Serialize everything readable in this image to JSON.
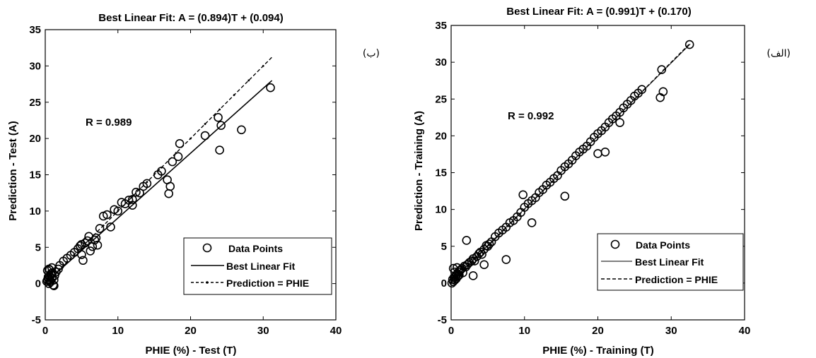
{
  "chart_data": [
    {
      "type": "scatter",
      "title": "Best Linear Fit: A = (0.894)T + (0.094)",
      "xlabel": "PHIE (%) - Test (T)",
      "ylabel": "Prediction - Test (A)",
      "xlim": [
        0,
        40
      ],
      "ylim": [
        -5,
        35
      ],
      "xticks": [
        0,
        10,
        20,
        30,
        40
      ],
      "yticks": [
        -5,
        0,
        5,
        10,
        15,
        20,
        25,
        30,
        35
      ],
      "annotation": "R = 0.989",
      "panel_tag": "(ب)",
      "legend_position": "bottom-right",
      "grid": false,
      "series": [
        {
          "name": "Data Points",
          "kind": "markers",
          "x": [
            0.2,
            0.3,
            0.4,
            0.5,
            0.6,
            0.7,
            0.8,
            0.9,
            1.0,
            0.3,
            0.5,
            0.7,
            1.2,
            0.6,
            0.9,
            0.4,
            0.8,
            1.1,
            1.3,
            0.5,
            1.5,
            1.8,
            2.0,
            2.5,
            3.0,
            3.5,
            4.0,
            4.5,
            4.8,
            5.0,
            5.2,
            5.5,
            5.8,
            6.0,
            6.2,
            6.5,
            6.8,
            7.0,
            7.2,
            7.5,
            8.0,
            8.5,
            9.0,
            9.5,
            10.0,
            10.5,
            11.0,
            11.5,
            12.0,
            12.0,
            12.5,
            13.0,
            13.5,
            14.0,
            15.5,
            16.0,
            16.8,
            17.0,
            17.2,
            17.5,
            18.3,
            18.5,
            22.0,
            23.8,
            24.0,
            24.2,
            27.0,
            31.0,
            1.2,
            5.0
          ],
          "y": [
            0.3,
            0.5,
            0.8,
            0.6,
            1.0,
            0.4,
            1.2,
            0.7,
            1.5,
            1.8,
            2.0,
            0.2,
            0.5,
            1.9,
            2.2,
            0.9,
            1.4,
            -0.2,
            1.1,
            0.0,
            1.6,
            2.0,
            2.5,
            3.1,
            3.5,
            3.9,
            4.3,
            4.8,
            5.2,
            5.4,
            3.2,
            5.6,
            5.9,
            6.5,
            4.5,
            5.1,
            6.0,
            6.3,
            5.3,
            7.6,
            9.3,
            9.5,
            7.8,
            10.2,
            10.0,
            11.2,
            11.0,
            11.5,
            10.8,
            11.6,
            12.6,
            12.5,
            13.4,
            13.8,
            15.0,
            15.5,
            14.3,
            12.4,
            13.4,
            16.8,
            17.5,
            19.3,
            20.4,
            22.9,
            18.4,
            21.8,
            21.2,
            27.0,
            -0.3,
            4.0
          ]
        },
        {
          "name": "Best Linear Fit",
          "kind": "line",
          "slope": 0.894,
          "intercept": 0.094,
          "x": [
            0,
            31.2
          ]
        },
        {
          "name": "Prediction = PHIE",
          "kind": "line",
          "slope": 1.0,
          "intercept": 0.0,
          "x": [
            0,
            31.2
          ]
        }
      ]
    },
    {
      "type": "scatter",
      "title": "Best Linear Fit: A = (0.991)T + (0.170)",
      "xlabel": "PHIE (%) - Training (T)",
      "ylabel": "Prediction - Training (A)",
      "xlim": [
        0,
        40
      ],
      "ylim": [
        -5,
        35
      ],
      "xticks": [
        0,
        10,
        20,
        30,
        40
      ],
      "yticks": [
        -5,
        0,
        5,
        10,
        15,
        20,
        25,
        30,
        35
      ],
      "annotation": "R = 0.992",
      "panel_tag": "(الف)",
      "legend_position": "bottom-right",
      "grid": false,
      "series": [
        {
          "name": "Data Points",
          "kind": "markers",
          "x": [
            0.1,
            0.2,
            0.3,
            0.4,
            0.5,
            0.6,
            0.7,
            0.8,
            0.9,
            1.0,
            1.1,
            1.2,
            0.3,
            0.5,
            0.8,
            1.0,
            1.3,
            1.5,
            1.6,
            1.8,
            2.0,
            2.2,
            2.5,
            2.8,
            3.0,
            3.2,
            3.5,
            3.8,
            4.0,
            4.2,
            4.5,
            4.8,
            5.0,
            5.2,
            5.5,
            6.0,
            6.5,
            7.0,
            7.5,
            8.0,
            8.5,
            9.0,
            9.5,
            10.0,
            10.5,
            11.0,
            11.5,
            12.0,
            12.5,
            13.0,
            13.5,
            14.0,
            14.5,
            15.0,
            15.5,
            16.0,
            16.5,
            17.0,
            17.5,
            18.0,
            18.5,
            19.0,
            19.5,
            20.0,
            20.5,
            21.0,
            21.5,
            22.0,
            22.5,
            23.0,
            23.5,
            24.0,
            24.5,
            25.0,
            25.5,
            26.0,
            28.7,
            28.9,
            32.5,
            2.1,
            7.5,
            9.8,
            11.0,
            15.5,
            20.0,
            21.0,
            23.0,
            28.5,
            3.0,
            4.5
          ],
          "y": [
            0.0,
            0.5,
            0.2,
            0.8,
            0.4,
            1.0,
            0.6,
            1.2,
            0.9,
            1.5,
            1.1,
            1.7,
            2.0,
            1.5,
            2.1,
            1.0,
            1.8,
            2.0,
            1.4,
            2.3,
            2.2,
            2.5,
            2.8,
            3.0,
            3.3,
            3.0,
            3.6,
            4.0,
            4.2,
            3.9,
            4.6,
            5.1,
            5.0,
            5.3,
            5.6,
            6.3,
            6.8,
            7.2,
            7.6,
            8.2,
            8.5,
            9.0,
            9.6,
            10.3,
            10.8,
            11.2,
            11.6,
            12.3,
            12.7,
            13.3,
            13.7,
            14.2,
            14.6,
            15.3,
            15.8,
            16.2,
            16.7,
            17.3,
            17.8,
            18.2,
            18.6,
            19.2,
            19.8,
            20.3,
            20.7,
            21.2,
            21.8,
            22.3,
            22.7,
            23.2,
            23.8,
            24.3,
            24.8,
            25.4,
            25.8,
            26.3,
            29.0,
            26.0,
            32.4,
            5.8,
            3.2,
            12.0,
            8.2,
            11.8,
            17.6,
            17.8,
            21.8,
            25.2,
            1.0,
            2.5
          ]
        },
        {
          "name": "Best Linear Fit",
          "kind": "line",
          "slope": 0.991,
          "intercept": 0.17,
          "x": [
            0,
            32.6
          ]
        },
        {
          "name": "Prediction = PHIE",
          "kind": "line",
          "slope": 1.0,
          "intercept": 0.0,
          "x": [
            0,
            32.6
          ]
        }
      ]
    }
  ]
}
